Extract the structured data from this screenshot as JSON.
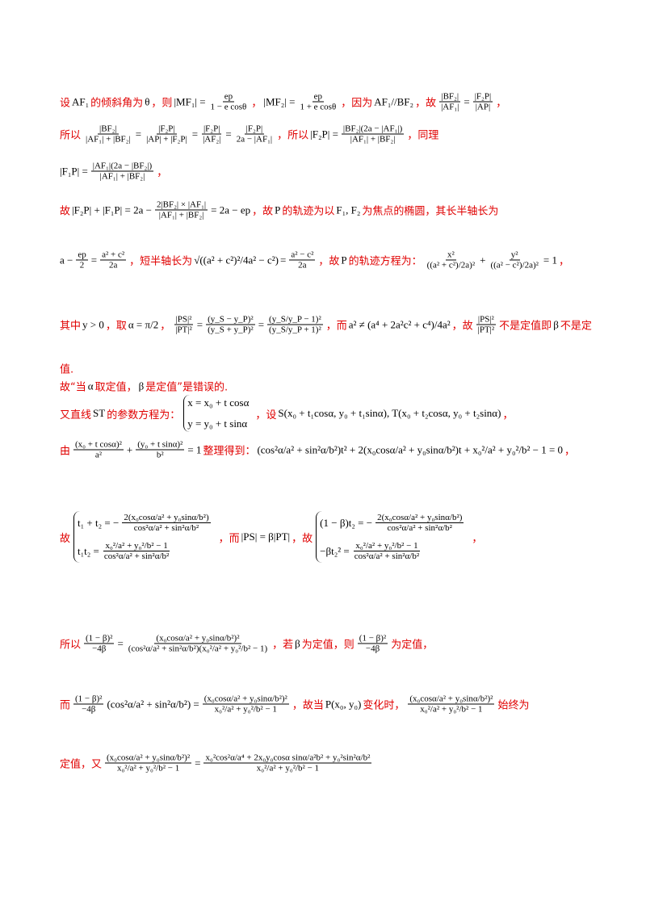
{
  "lines": [
    [
      "设",
      "AF₁",
      "的倾斜角为",
      "θ",
      "，则",
      "|MF₁| =",
      {
        "num": "ep",
        "den": "1 − e cosθ"
      },
      "，",
      "|MF₂| =",
      {
        "num": "ep",
        "den": "1 + e cosθ"
      },
      "，因为",
      "AF₁//BF₂",
      "，故",
      {
        "num": "|BF₂|",
        "den": "|AF₁|"
      },
      "=",
      {
        "num": "|F₂P|",
        "den": "|AP|"
      },
      "，"
    ],
    [
      "所以",
      {
        "num": "|BF₂|",
        "den": "|AF₁| + |BF₂|"
      },
      "=",
      {
        "num": "|F₂P|",
        "den": "|AP| + |F₂P|"
      },
      "=",
      {
        "num": "|F₂P|",
        "den": "|AF₂|"
      },
      "=",
      {
        "num": "|F₂P|",
        "den": "2a − |AF₁|"
      },
      "，所以",
      "|F₂P| =",
      {
        "num": "|BF₂|(2a − |AF₁|)",
        "den": "|AF₁| + |BF₂|"
      },
      "，同理"
    ],
    [
      "|F₁P| =",
      {
        "num": "|AF₁|(2a − |BF₂|)",
        "den": "|AF₁| + |BF₂|"
      },
      "，"
    ],
    [
      "故",
      "|F₂P| + |F₁P| = 2a −",
      {
        "num": "2|BF₂| × |AF₁|",
        "den": "|AF₁| + |BF₂|"
      },
      "= 2a − ep",
      "，故",
      "P",
      "的轨迹为以",
      "F₁, F₂",
      "为焦点的椭圆，其长半轴长为"
    ],
    [
      "a −",
      {
        "num": "ep",
        "den": "2"
      },
      "=",
      {
        "num": "a² + c²",
        "den": "2a"
      },
      "，短半轴长为",
      "√((a² + c²)²/4a² − c²)",
      "=",
      {
        "num": "a² − c²",
        "den": "2a"
      },
      "，故",
      "P",
      "的轨迹方程为：",
      {
        "num": "x²",
        "den": "((a² + c²)/2a)²"
      },
      "+",
      {
        "num": "y²",
        "den": "((a² − c²)/2a)²"
      },
      "= 1",
      "，"
    ],
    [
      "其中",
      "y > 0",
      "，取",
      "α = π/2",
      "，",
      {
        "num": "|PS|²",
        "den": "|PT|²"
      },
      "=",
      {
        "num": "(y_S − y_P)²",
        "den": "(y_S + y_P)²"
      },
      "=",
      {
        "num": "(y_S/y_P − 1)²",
        "den": "(y_S/y_P + 1)²"
      },
      "，而",
      "a² ≠ (a⁴ + 2a²c² + c⁴)/4a²",
      "，故",
      {
        "num": "|PS|²",
        "den": "|PT|²"
      },
      "不是定值即",
      "β",
      "不是定"
    ],
    [
      "值."
    ],
    [
      "故“当",
      "α",
      "取定值，",
      "β",
      "是定值”是错误的."
    ],
    [
      "又直线",
      "ST",
      "的参数方程为：",
      {
        "system": [
          [
            "x = x₀ + t cosα"
          ],
          [
            "y = y₀ + t sinα"
          ]
        ]
      },
      "，设",
      "S(x₀ + t₁cosα, y₀ + t₁sinα), T(x₀ + t₂cosα, y₀ + t₂sinα)",
      "，"
    ],
    [
      "由",
      {
        "num": "(x₀ + t cosα)²",
        "den": "a²"
      },
      "+",
      {
        "num": "(y₀ + t sinα)²",
        "den": "b²"
      },
      "= 1",
      "整理得到：",
      "(cos²α/a² + sin²α/b²)t² + 2(x₀cosα/a² + y₀sinα/b²)t + x₀²/a² + y₀²/b² − 1 = 0",
      "，"
    ],
    [
      "故",
      {
        "system": [
          [
            "t₁ + t₂ = −",
            {
              "num": "2(x₀cosα/a² + y₀sinα/b²)",
              "den": "cos²α/a² + sin²α/b²"
            }
          ],
          [
            "t₁t₂ =",
            {
              "num": "x₀²/a² + y₀²/b² − 1",
              "den": "cos²α/a² + sin²α/b²"
            }
          ]
        ]
      },
      "，而",
      "|PS| = β|PT|",
      "，故",
      {
        "system": [
          [
            "(1 − β)t₂ = −",
            {
              "num": "2(x₀cosα/a² + y₀sinα/b²)",
              "den": "cos²α/a² + sin²α/b²"
            }
          ],
          [
            "−βt₂² =",
            {
              "num": "x₀²/a² + y₀²/b² − 1",
              "den": "cos²α/a² + sin²α/b²"
            }
          ]
        ]
      },
      "，"
    ],
    [
      "所以",
      {
        "num": "(1 − β)²",
        "den": "−4β"
      },
      "=",
      {
        "num": "(x₀cosα/a² + y₀sinα/b²)²",
        "den": "(cos²α/a² + sin²α/b²)(x₀²/a² + y₀²/b² − 1)"
      },
      "，若",
      "β",
      "为定值，则",
      {
        "num": "(1 − β)²",
        "den": "−4β"
      },
      "为定值，"
    ],
    [
      "而",
      {
        "num": "(1 − β)²",
        "den": "−4β"
      },
      "(cos²α/a² + sin²α/b²) =",
      {
        "num": "(x₀cosα/a² + y₀sinα/b²)²",
        "den": "x₀²/a² + y₀²/b² − 1"
      },
      "，故当",
      "P(x₀, y₀)",
      "变化时，",
      {
        "num": "(x₀cosα/a² + y₀sinα/b²)²",
        "den": "x₀²/a² + y₀²/b² − 1"
      },
      "始终为"
    ],
    [
      "定值，又",
      {
        "num": "(x₀cosα/a² + y₀sinα/b²)²",
        "den": "x₀²/a² + y₀²/b² − 1"
      },
      "=",
      {
        "num": "x₀²cos²α/a⁴ + 2x₀y₀cosα sinα/a²b² + y₀²sin²α/b²",
        "den": "x₀²/a² + y₀²/b² − 1"
      }
    ]
  ]
}
